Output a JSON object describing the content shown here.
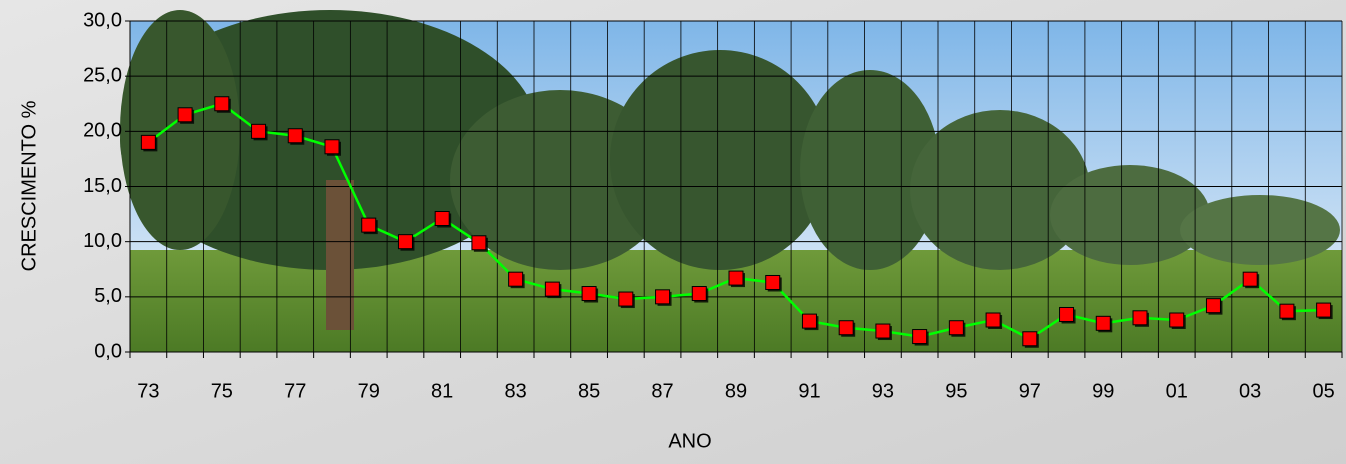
{
  "chart_data": {
    "type": "line",
    "categories": [
      "73",
      null,
      "75",
      null,
      "77",
      null,
      "79",
      null,
      "81",
      null,
      "83",
      null,
      "85",
      null,
      "87",
      null,
      "89",
      null,
      "91",
      null,
      "93",
      null,
      "95",
      null,
      "97",
      null,
      "99",
      null,
      "01",
      null,
      "03",
      null,
      "05"
    ],
    "series": [
      {
        "name": "CRESCIMENTO",
        "color": "#00ff00",
        "marker_color": "#ff0000",
        "values": [
          19.0,
          21.5,
          22.5,
          20.0,
          19.6,
          18.6,
          11.5,
          10.0,
          12.1,
          9.9,
          6.6,
          5.7,
          5.3,
          4.8,
          5.0,
          5.3,
          6.7,
          6.3,
          2.8,
          2.2,
          1.9,
          1.4,
          2.2,
          2.9,
          1.2,
          3.4,
          2.6,
          3.1,
          2.9,
          4.2,
          6.6,
          3.7,
          3.8
        ]
      }
    ],
    "xlabel": "ANO",
    "ylabel": "CRESCIMENTO %",
    "ylim": [
      0,
      30
    ],
    "yticks": [
      {
        "value": 0,
        "label": "0,0"
      },
      {
        "value": 5,
        "label": "5,0"
      },
      {
        "value": 10,
        "label": "10,0"
      },
      {
        "value": 15,
        "label": "15,0"
      },
      {
        "value": 20,
        "label": "20,0"
      },
      {
        "value": 25,
        "label": "25,0"
      },
      {
        "value": 30,
        "label": "30,0"
      }
    ],
    "grid": true
  }
}
